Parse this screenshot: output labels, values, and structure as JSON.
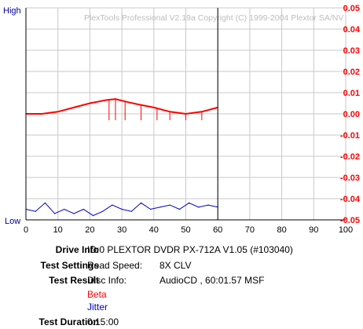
{
  "chart_data": {
    "type": "line",
    "watermark": "PlexTools Professional V2.19a Copyright (C) 1999-2004 Plextor SA/NV",
    "left_axis": {
      "top_label": "High",
      "bottom_label": "Low",
      "color": "#00009c"
    },
    "right_axis": {
      "ticks": [
        "0.05",
        "0.04",
        "0.03",
        "0.02",
        "0.01",
        "0.00",
        "-0.01",
        "-0.02",
        "-0.03",
        "-0.04",
        "-0.05"
      ],
      "ylim": [
        -0.05,
        0.05
      ],
      "color": "#ff0000"
    },
    "x_axis": {
      "ticks": [
        "0",
        "10",
        "20",
        "30",
        "40",
        "50",
        "60",
        "70",
        "80",
        "90",
        "100"
      ],
      "xlim": [
        0,
        100
      ]
    },
    "grid": true,
    "current_position": 60,
    "series": [
      {
        "name": "Beta",
        "color": "#ff0000",
        "unit_axis": "right",
        "x": [
          0,
          5,
          10,
          15,
          20,
          25,
          28,
          32,
          35,
          40,
          45,
          50,
          55,
          60
        ],
        "y": [
          0.0,
          0.0,
          0.001,
          0.003,
          0.005,
          0.0065,
          0.007,
          0.0055,
          0.0045,
          0.003,
          0.001,
          0.0,
          0.001,
          0.003
        ],
        "spikes": [
          {
            "x": 26,
            "y": -0.003
          },
          {
            "x": 28,
            "y": -0.003
          },
          {
            "x": 31,
            "y": -0.003
          },
          {
            "x": 36,
            "y": -0.003
          },
          {
            "x": 41,
            "y": -0.003
          },
          {
            "x": 45,
            "y": -0.003
          },
          {
            "x": 50,
            "y": -0.003
          },
          {
            "x": 55,
            "y": -0.003
          }
        ]
      },
      {
        "name": "Jitter",
        "color": "#0000c8",
        "unit_axis": "left",
        "x": [
          0,
          3,
          6,
          9,
          12,
          15,
          18,
          21,
          24,
          27,
          30,
          33,
          36,
          39,
          42,
          45,
          48,
          51,
          54,
          57,
          60
        ],
        "y": [
          0.05,
          0.04,
          0.08,
          0.03,
          0.05,
          0.03,
          0.05,
          0.02,
          0.04,
          0.07,
          0.05,
          0.04,
          0.08,
          0.05,
          0.06,
          0.07,
          0.05,
          0.08,
          0.06,
          0.07,
          0.06
        ]
      }
    ]
  },
  "info": {
    "drive_info_label": "Drive Info",
    "drive_info_value": "ID:0 PLEXTOR DVDR PX-712A V1.05 (#103040)",
    "test_settings_label": "Test Settings",
    "read_speed_label": "Read Speed:",
    "read_speed_value": "8X CLV",
    "test_result_label": "Test Result",
    "disc_info_label": "Disc Info:",
    "disc_info_value": "AudioCD , 60:01.57 MSF",
    "beta_label": "Beta",
    "jitter_label": "Jitter",
    "test_duration_label": "Test Duration",
    "test_duration_value": "0:15:00"
  }
}
